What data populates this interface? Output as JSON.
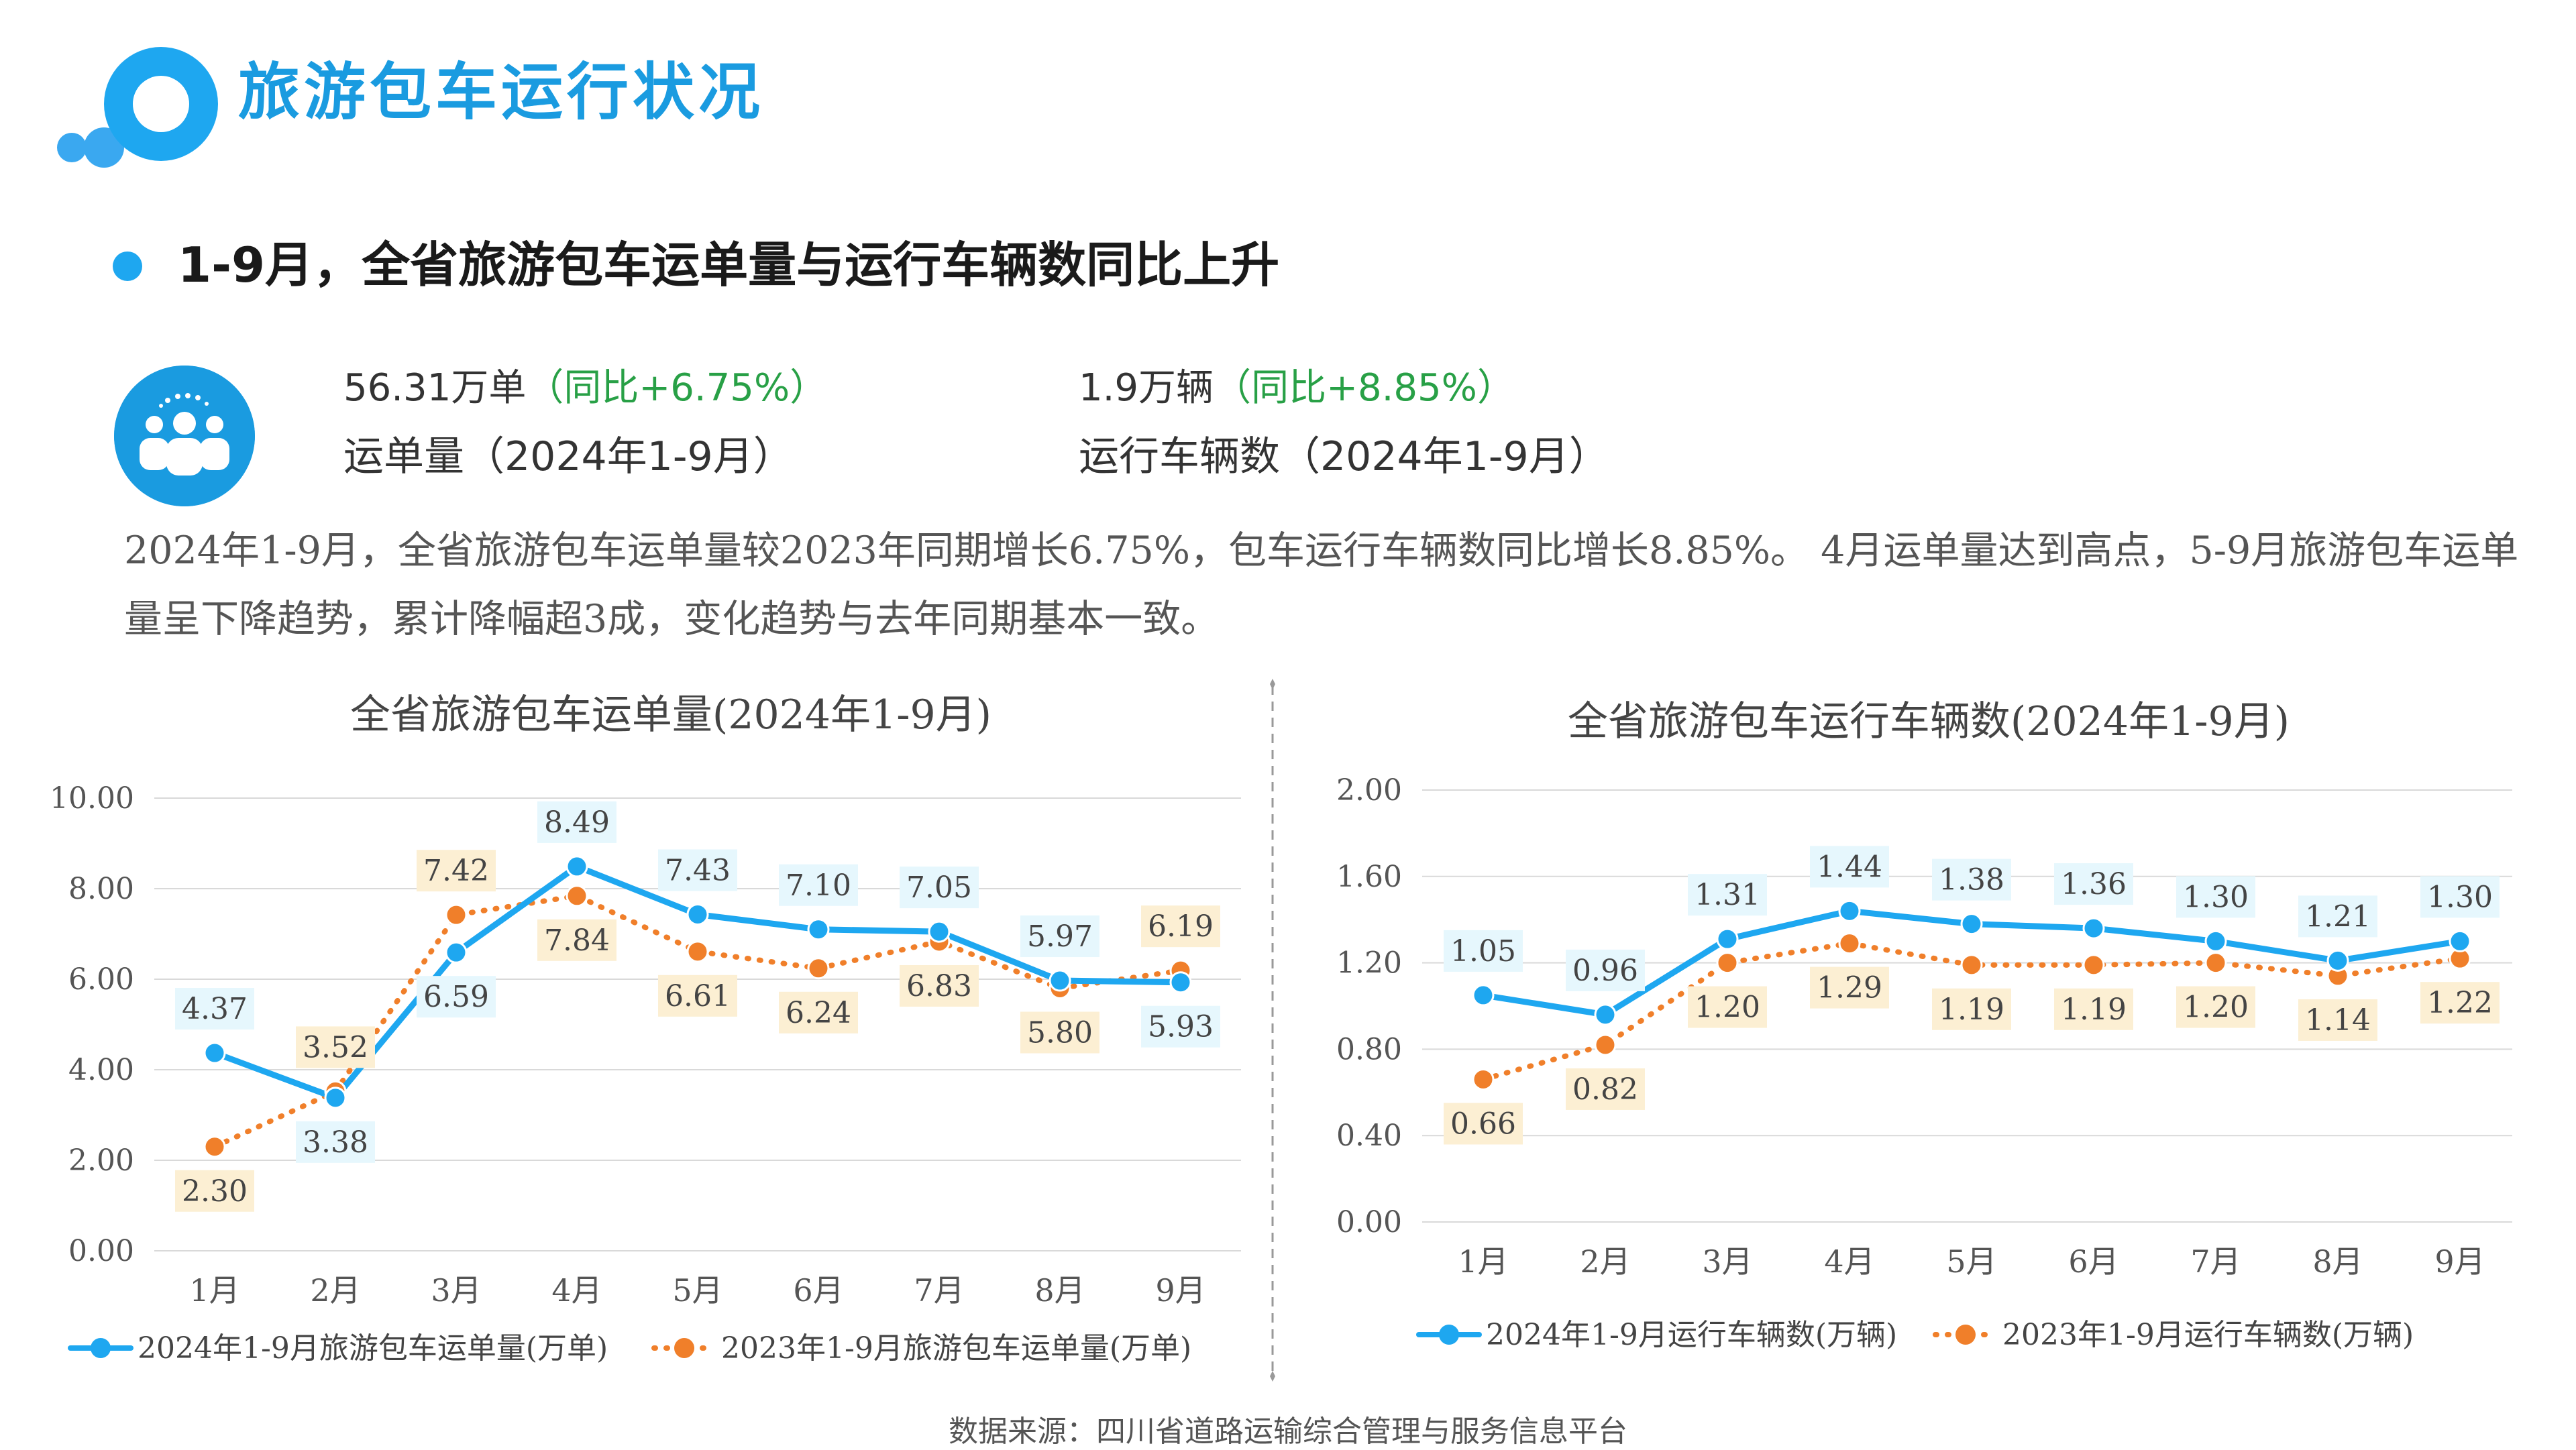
{
  "page_title": "旅游包车运行状况",
  "subtitle": "1-9月，全省旅游包车运单量与运行车辆数同比上升",
  "icons": {
    "logo": "circle-logo-icon",
    "stats": "people-group-icon",
    "bullet": "dot-icon"
  },
  "colors": {
    "accent": "#1a9be0",
    "series_2024": "#1ea7f0",
    "series_2023": "#f07f2a",
    "positive": "#28a046"
  },
  "stats": [
    {
      "value": "56.31万单",
      "change": "（同比+6.75%）",
      "label": "运单量（2024年1-9月）"
    },
    {
      "value": "1.9万辆",
      "change": "（同比+8.85%）",
      "label": "运行车辆数（2024年1-9月）"
    }
  ],
  "description": "2024年1-9月，全省旅游包车运单量较2023年同期增长6.75%，包车运行车辆数同比增长8.85%。 4月运单量达到高点，5-9月旅游包车运单量呈下降趋势，累计降幅超3成，变化趋势与去年同期基本一致。",
  "source": "数据来源：四川省道路运输综合管理与服务信息平台",
  "chart_data": [
    {
      "type": "line",
      "title": "全省旅游包车运单量(2024年1-9月)",
      "categories": [
        "1月",
        "2月",
        "3月",
        "4月",
        "5月",
        "6月",
        "7月",
        "8月",
        "9月"
      ],
      "ylim": [
        0,
        10
      ],
      "yticks": [
        "0.00",
        "2.00",
        "4.00",
        "6.00",
        "8.00",
        "10.00"
      ],
      "grid": true,
      "legend": "bottom",
      "series": [
        {
          "name": "2024年1-9月旅游包车运单量(万单)",
          "values": [
            4.37,
            3.38,
            6.59,
            8.49,
            7.43,
            7.1,
            7.05,
            5.97,
            5.93
          ],
          "labels": [
            "4.37",
            "3.38",
            "6.59",
            "8.49",
            "7.43",
            "7.10",
            "7.05",
            "5.97",
            "5.93"
          ],
          "style": "solid"
        },
        {
          "name": "2023年1-9月旅游包车运单量(万单)",
          "values": [
            2.3,
            3.52,
            7.42,
            7.84,
            6.61,
            6.24,
            6.83,
            5.8,
            6.19
          ],
          "labels": [
            "2.30",
            "3.52",
            "7.42",
            "7.84",
            "6.61",
            "6.24",
            "6.83",
            "5.80",
            "6.19"
          ],
          "style": "dotted"
        }
      ]
    },
    {
      "type": "line",
      "title": "全省旅游包车运行车辆数(2024年1-9月)",
      "categories": [
        "1月",
        "2月",
        "3月",
        "4月",
        "5月",
        "6月",
        "7月",
        "8月",
        "9月"
      ],
      "ylim": [
        0,
        2
      ],
      "yticks": [
        "0.00",
        "0.40",
        "0.80",
        "1.20",
        "1.60",
        "2.00"
      ],
      "grid": true,
      "legend": "bottom",
      "series": [
        {
          "name": "2024年1-9月运行车辆数(万辆)",
          "values": [
            1.05,
            0.96,
            1.31,
            1.44,
            1.38,
            1.36,
            1.3,
            1.21,
            1.3
          ],
          "labels": [
            "1.05",
            "0.96",
            "1.31",
            "1.44",
            "1.38",
            "1.36",
            "1.30",
            "1.21",
            "1.30"
          ],
          "style": "solid"
        },
        {
          "name": "2023年1-9月运行车辆数(万辆)",
          "values": [
            0.66,
            0.82,
            1.2,
            1.29,
            1.19,
            1.19,
            1.2,
            1.14,
            1.22
          ],
          "labels": [
            "0.66",
            "0.82",
            "1.20",
            "1.29",
            "1.19",
            "1.19",
            "1.20",
            "1.14",
            "1.22"
          ],
          "style": "dotted"
        }
      ]
    }
  ]
}
